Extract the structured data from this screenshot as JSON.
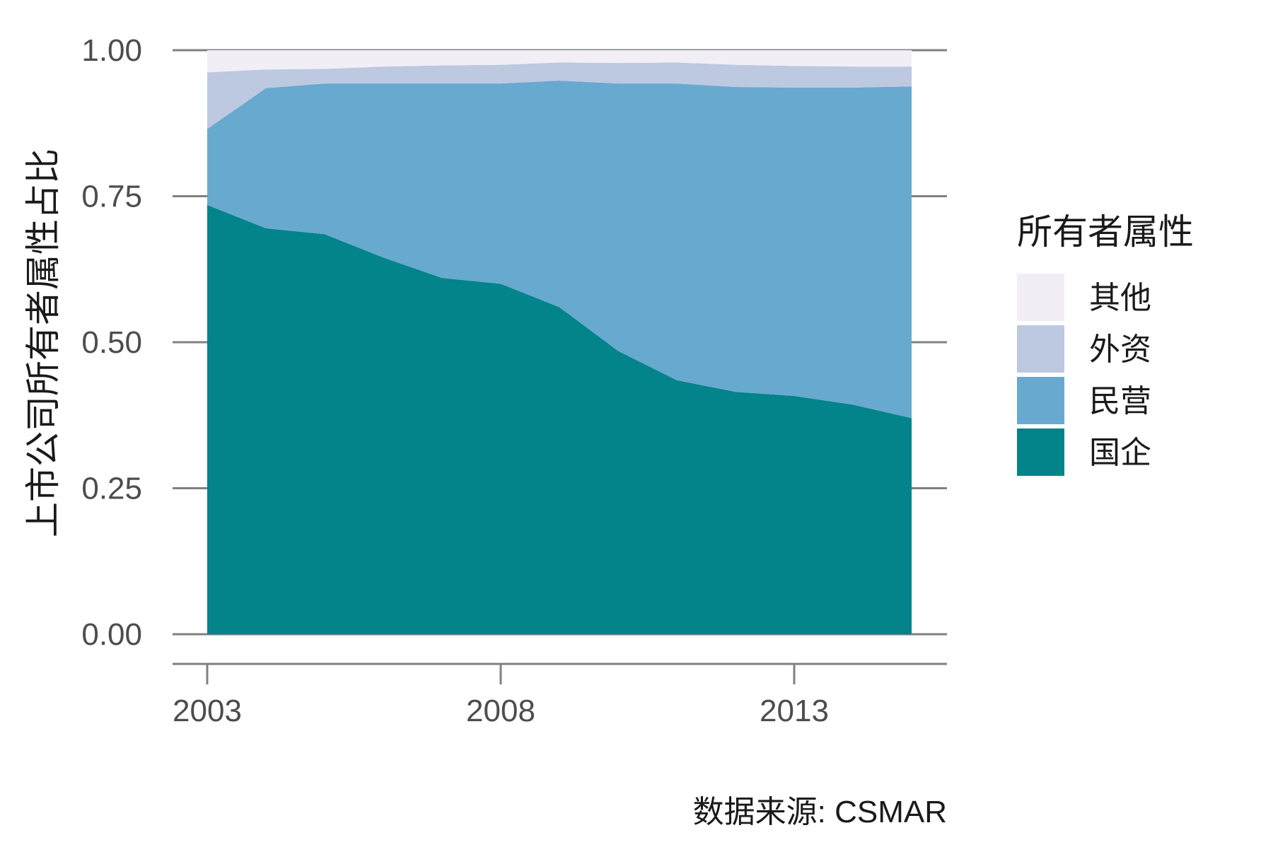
{
  "chart_data": {
    "type": "area",
    "stacked": "proportion",
    "title": "",
    "xlabel": "",
    "ylabel": "上市公司所有者属性占比",
    "caption": "数据来源: CSMAR",
    "legend_title": "所有者属性",
    "legend_position": "right",
    "grid": true,
    "xlim": [
      2003,
      2015
    ],
    "ylim": [
      0,
      1
    ],
    "x_ticks": [
      2003,
      2008,
      2013
    ],
    "y_ticks": [
      "0.00",
      "0.25",
      "0.50",
      "0.75",
      "1.00"
    ],
    "x": [
      2003,
      2004,
      2005,
      2006,
      2007,
      2008,
      2009,
      2010,
      2011,
      2012,
      2013,
      2014,
      2015
    ],
    "series": [
      {
        "name": "国企",
        "color": "#03838a",
        "values": [
          0.735,
          0.695,
          0.685,
          0.645,
          0.61,
          0.6,
          0.56,
          0.485,
          0.435,
          0.415,
          0.408,
          0.393,
          0.37
        ]
      },
      {
        "name": "民营",
        "color": "#68a9cf",
        "values": [
          0.13,
          0.24,
          0.258,
          0.298,
          0.333,
          0.343,
          0.388,
          0.458,
          0.508,
          0.522,
          0.528,
          0.543,
          0.568
        ]
      },
      {
        "name": "外资",
        "color": "#bdc8e1",
        "values": [
          0.097,
          0.032,
          0.025,
          0.029,
          0.031,
          0.032,
          0.031,
          0.035,
          0.036,
          0.038,
          0.037,
          0.036,
          0.034
        ]
      },
      {
        "name": "其他",
        "color": "#f1eef6",
        "values": [
          0.038,
          0.033,
          0.032,
          0.028,
          0.026,
          0.025,
          0.021,
          0.022,
          0.021,
          0.025,
          0.027,
          0.028,
          0.028
        ]
      }
    ],
    "legend_order": [
      "其他",
      "外资",
      "民营",
      "国企"
    ]
  }
}
